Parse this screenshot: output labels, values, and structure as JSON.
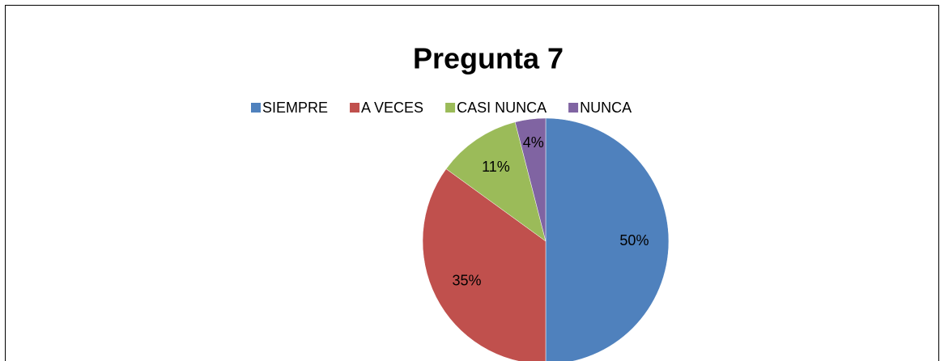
{
  "chart_data": {
    "type": "pie",
    "title": "Pregunta 7",
    "categories": [
      "SIEMPRE",
      "A VECES",
      "CASI NUNCA",
      "NUNCA"
    ],
    "values": [
      50,
      35,
      11,
      4
    ],
    "value_labels": [
      "50%",
      "35%",
      "11%",
      "4%"
    ],
    "colors": [
      "#4f81bd",
      "#c0504d",
      "#9bbb59",
      "#8064a2"
    ],
    "legend": "top"
  }
}
